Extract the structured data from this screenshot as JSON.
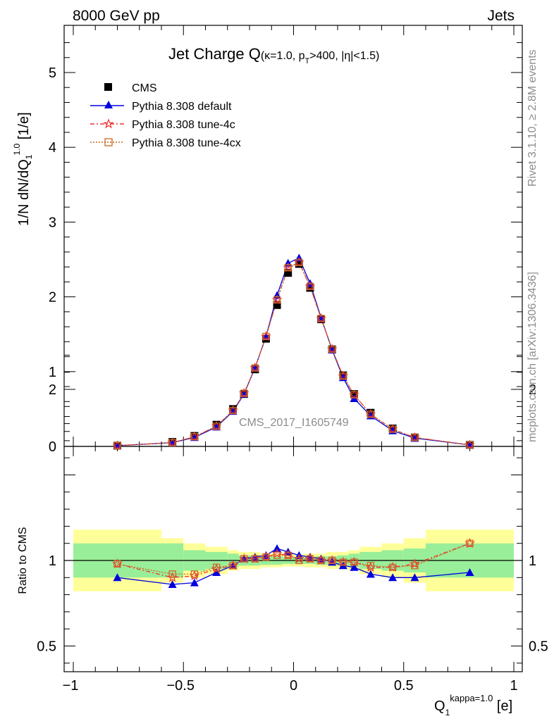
{
  "header": {
    "left": "8000 GeV pp",
    "right": "Jets"
  },
  "plot_title": {
    "main": "Jet Charge Q",
    "kappa_part": "(κ=1.0, p",
    "pt_sub": "T",
    "cut_part": ">400, |η|<1.5)"
  },
  "analysis_label": "CMS_2017_I1605749",
  "side_labels": {
    "rivet": "Rivet 3.1.10, ≥ 2.8M events",
    "mcplots": "mcplots.cern.ch [arXiv:1306.3436]"
  },
  "y_axis_top": {
    "label": "1/N dN/dQ",
    "sub": "1",
    "sup": "1.0",
    "unit": " [1/e]"
  },
  "y_axis_ratio": {
    "label": "Ratio to CMS"
  },
  "x_axis": {
    "label": "Q",
    "sub": "1",
    "sup": "kappa=1.0",
    "unit": " [e]"
  },
  "legend": [
    {
      "name": "CMS"
    },
    {
      "name": "Pythia 8.308 default"
    },
    {
      "name": "Pythia 8.308 tune-4c"
    },
    {
      "name": "Pythia 8.308 tune-4cx"
    }
  ],
  "colors": {
    "cms": "#000000",
    "default": "#0000dd",
    "tune4c": "#ee3333",
    "tune4cx": "#cc6622",
    "band_inner": "#99ee99",
    "band_outer": "#ffff99"
  },
  "chart_data": {
    "type": "scatter",
    "top_panel": {
      "xlim": [
        -1.0,
        1.0
      ],
      "ylim": [
        0,
        5.6
      ],
      "x_ticks": [
        -1,
        -0.5,
        0,
        0.5,
        1
      ],
      "y_ticks": [
        0,
        1,
        2,
        3,
        4,
        5
      ],
      "x": [
        -0.8,
        -0.55,
        -0.45,
        -0.35,
        -0.275,
        -0.225,
        -0.175,
        -0.125,
        -0.075,
        -0.025,
        0.025,
        0.075,
        0.125,
        0.175,
        0.225,
        0.275,
        0.35,
        0.45,
        0.55,
        0.8
      ],
      "series": [
        {
          "name": "CMS",
          "values": [
            0.01,
            0.06,
            0.14,
            0.29,
            0.5,
            0.7,
            1.03,
            1.44,
            1.89,
            2.32,
            2.44,
            2.12,
            1.7,
            1.3,
            0.95,
            0.7,
            0.45,
            0.24,
            0.12,
            0.02
          ]
        },
        {
          "name": "Pythia 8.308 default",
          "values": [
            0.01,
            0.05,
            0.12,
            0.26,
            0.47,
            0.7,
            1.05,
            1.47,
            2.02,
            2.45,
            2.52,
            2.18,
            1.72,
            1.29,
            0.92,
            0.64,
            0.41,
            0.21,
            0.11,
            0.02
          ]
        },
        {
          "name": "Pythia 8.308 tune-4c",
          "values": [
            0.01,
            0.05,
            0.13,
            0.27,
            0.48,
            0.71,
            1.05,
            1.47,
            1.96,
            2.39,
            2.46,
            2.14,
            1.71,
            1.3,
            0.94,
            0.69,
            0.43,
            0.23,
            0.12,
            0.02
          ]
        },
        {
          "name": "Pythia 8.308 tune-4cx",
          "values": [
            0.01,
            0.05,
            0.13,
            0.27,
            0.48,
            0.71,
            1.05,
            1.47,
            1.96,
            2.39,
            2.46,
            2.14,
            1.71,
            1.3,
            0.94,
            0.69,
            0.43,
            0.23,
            0.12,
            0.02
          ]
        }
      ]
    },
    "ratio_panel": {
      "ylim": [
        0.3,
        2.3
      ],
      "y_ticks": [
        0.5,
        1,
        2
      ],
      "bins": [
        -1.0,
        -0.6,
        -0.5,
        -0.4,
        -0.3,
        -0.25,
        -0.2,
        -0.15,
        -0.1,
        -0.05,
        0.0,
        0.05,
        0.1,
        0.15,
        0.2,
        0.25,
        0.3,
        0.4,
        0.5,
        0.6,
        1.0
      ],
      "band_inner": [
        0.1,
        0.1,
        0.06,
        0.05,
        0.04,
        0.03,
        0.03,
        0.025,
        0.025,
        0.02,
        0.02,
        0.02,
        0.025,
        0.025,
        0.03,
        0.04,
        0.05,
        0.06,
        0.07,
        0.1
      ],
      "band_outer": [
        0.18,
        0.13,
        0.1,
        0.08,
        0.06,
        0.05,
        0.05,
        0.04,
        0.04,
        0.035,
        0.035,
        0.04,
        0.04,
        0.05,
        0.05,
        0.06,
        0.08,
        0.1,
        0.13,
        0.18
      ],
      "series": [
        {
          "name": "Pythia 8.308 default",
          "values": [
            0.9,
            0.86,
            0.87,
            0.93,
            0.97,
            1.01,
            1.02,
            1.03,
            1.07,
            1.05,
            1.03,
            1.02,
            1.01,
            0.99,
            0.97,
            0.96,
            0.92,
            0.9,
            0.9,
            0.93
          ]
        },
        {
          "name": "Pythia 8.308 tune-4c",
          "values": [
            0.98,
            0.9,
            0.91,
            0.95,
            0.97,
            1.01,
            1.01,
            1.02,
            1.04,
            1.03,
            1.01,
            1.01,
            1.0,
            1.0,
            0.99,
            0.99,
            0.96,
            0.96,
            0.98,
            1.1
          ]
        },
        {
          "name": "Pythia 8.308 tune-4cx",
          "values": [
            0.98,
            0.92,
            0.92,
            0.96,
            0.97,
            1.01,
            1.01,
            1.02,
            1.03,
            1.03,
            1.0,
            1.01,
            1.0,
            1.0,
            0.99,
            0.99,
            0.97,
            0.96,
            0.97,
            1.1
          ]
        }
      ]
    }
  }
}
